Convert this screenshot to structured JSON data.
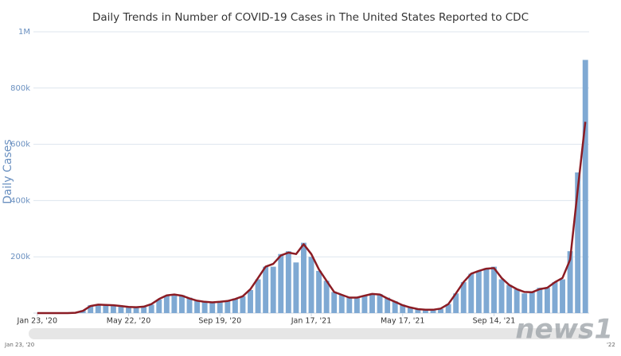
{
  "chart_data": {
    "type": "bar",
    "title": "Daily Trends in Number of COVID-19 Cases in The United States Reported to CDC",
    "y_label": "Daily Cases",
    "categories": [
      "Jan 23, '20",
      null,
      null,
      null,
      null,
      null,
      null,
      null,
      null,
      null,
      null,
      null,
      "May 22, '20",
      null,
      null,
      null,
      null,
      null,
      null,
      null,
      null,
      null,
      null,
      null,
      "Sep 19, '20",
      null,
      null,
      null,
      null,
      null,
      null,
      null,
      null,
      null,
      null,
      null,
      "Jan 17, '21",
      null,
      null,
      null,
      null,
      null,
      null,
      null,
      null,
      null,
      null,
      null,
      "May 17, '21",
      null,
      null,
      null,
      null,
      null,
      null,
      null,
      null,
      null,
      null,
      null,
      "Sep 14, '21",
      null,
      null,
      null,
      null,
      null,
      null,
      null,
      null,
      null,
      null,
      null,
      null
    ],
    "series": [
      {
        "type": "bar",
        "color": "#7fa9d3",
        "values": [
          0,
          0,
          0,
          0,
          100,
          1500,
          10000,
          28000,
          30000,
          30000,
          28000,
          25000,
          22000,
          21000,
          22000,
          30000,
          48000,
          62000,
          67000,
          64000,
          55000,
          45000,
          42000,
          36000,
          42000,
          43000,
          52000,
          60000,
          82000,
          120000,
          165000,
          165000,
          210000,
          220000,
          180000,
          250000,
          200000,
          150000,
          115000,
          75000,
          65000,
          55000,
          55000,
          63000,
          70000,
          68000,
          55000,
          42000,
          30000,
          20000,
          15000,
          12000,
          12000,
          15000,
          32000,
          70000,
          110000,
          140000,
          150000,
          160000,
          165000,
          120000,
          100000,
          85000,
          70000,
          75000,
          90000,
          90000,
          110000,
          120000,
          220000,
          500000,
          900000
        ]
      },
      {
        "type": "line",
        "color": "#8b1c24",
        "values": [
          0,
          0,
          0,
          0,
          0,
          1000,
          8000,
          25000,
          30000,
          29000,
          28000,
          25000,
          22000,
          21000,
          23000,
          32000,
          50000,
          63000,
          66000,
          62000,
          52000,
          44000,
          40000,
          38000,
          40000,
          43000,
          50000,
          60000,
          85000,
          125000,
          165000,
          175000,
          205000,
          215000,
          210000,
          245000,
          210000,
          155000,
          115000,
          75000,
          65000,
          55000,
          55000,
          62000,
          68000,
          66000,
          52000,
          40000,
          28000,
          20000,
          14000,
          12000,
          12000,
          16000,
          32000,
          70000,
          110000,
          140000,
          150000,
          158000,
          160000,
          125000,
          100000,
          85000,
          75000,
          74000,
          85000,
          90000,
          110000,
          125000,
          190000,
          440000,
          680000
        ]
      }
    ],
    "ylim": [
      0,
      1000000
    ],
    "yticks": [
      {
        "value": 200000,
        "label": "200k"
      },
      {
        "value": 400000,
        "label": "400k"
      },
      {
        "value": 600000,
        "label": "600k"
      },
      {
        "value": 800000,
        "label": "800k"
      },
      {
        "value": 1000000,
        "label": "1M"
      }
    ],
    "grid": true,
    "navigator_labels": [
      "Jan 23, '20",
      "'22"
    ],
    "watermark": "news1"
  }
}
